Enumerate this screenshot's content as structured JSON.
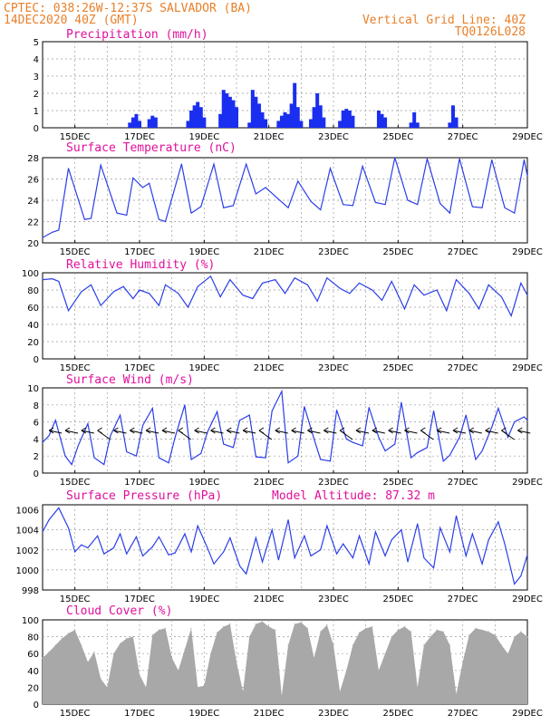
{
  "header": {
    "line1_left": "CPTEC:   038:26W-12:37S  SALVADOR (BA)",
    "line2_left": "14DEC2020 40Z (GMT)",
    "line1_right": "Vertical Grid Line: 40Z",
    "line2_right": "TQ0126L028"
  },
  "extra_text": {
    "model_altitude": "Model Altitude: 87.32 m"
  },
  "colors": {
    "header_text": "#e8802a",
    "panel_title": "#e0109a",
    "series_line": "#2a3ee8",
    "precip_bar": "#1a2ef0",
    "cloud_fill": "#a8a8a8",
    "wind_arrow": "#000000"
  },
  "chart_data": [
    {
      "type": "bar",
      "title": "Precipitation (mm/h)",
      "x_tick_labels": [
        "15DEC",
        "17DEC",
        "19DEC",
        "21DEC",
        "23DEC",
        "25DEC",
        "27DEC",
        "29DEC"
      ],
      "ylim": [
        0,
        5
      ],
      "y_ticks": [
        0,
        1,
        2,
        3,
        4,
        5
      ],
      "grid": "dashed",
      "bars": [
        [
          16.7,
          0.3
        ],
        [
          16.8,
          0.6
        ],
        [
          16.9,
          0.8
        ],
        [
          17.0,
          0.4
        ],
        [
          17.3,
          0.5
        ],
        [
          17.4,
          0.7
        ],
        [
          17.5,
          0.6
        ],
        [
          18.5,
          0.4
        ],
        [
          18.6,
          1.0
        ],
        [
          18.7,
          1.3
        ],
        [
          18.8,
          1.5
        ],
        [
          18.9,
          1.2
        ],
        [
          19.0,
          0.6
        ],
        [
          19.5,
          0.8
        ],
        [
          19.6,
          2.2
        ],
        [
          19.7,
          2.0
        ],
        [
          19.8,
          1.8
        ],
        [
          19.9,
          1.6
        ],
        [
          20.0,
          1.2
        ],
        [
          20.4,
          0.3
        ],
        [
          20.5,
          2.2
        ],
        [
          20.6,
          1.8
        ],
        [
          20.7,
          1.4
        ],
        [
          20.8,
          0.9
        ],
        [
          20.9,
          0.5
        ],
        [
          21.3,
          0.4
        ],
        [
          21.4,
          0.7
        ],
        [
          21.5,
          0.9
        ],
        [
          21.6,
          0.8
        ],
        [
          21.7,
          1.4
        ],
        [
          21.8,
          2.6
        ],
        [
          21.9,
          1.2
        ],
        [
          22.0,
          0.4
        ],
        [
          22.3,
          0.5
        ],
        [
          22.4,
          1.2
        ],
        [
          22.5,
          2.0
        ],
        [
          22.6,
          1.3
        ],
        [
          22.7,
          0.6
        ],
        [
          23.2,
          0.4
        ],
        [
          23.3,
          1.0
        ],
        [
          23.4,
          1.1
        ],
        [
          23.5,
          1.0
        ],
        [
          23.6,
          0.7
        ],
        [
          24.4,
          1.0
        ],
        [
          24.5,
          0.8
        ],
        [
          24.6,
          0.6
        ],
        [
          25.4,
          0.3
        ],
        [
          25.5,
          0.9
        ],
        [
          25.6,
          0.3
        ],
        [
          26.6,
          0.3
        ],
        [
          26.7,
          1.3
        ],
        [
          26.8,
          0.6
        ]
      ]
    },
    {
      "type": "line",
      "title": "Surface Temperature (nC)",
      "x_tick_labels": [
        "15DEC",
        "17DEC",
        "19DEC",
        "21DEC",
        "23DEC",
        "25DEC",
        "27DEC",
        "29DEC"
      ],
      "ylim": [
        20,
        28
      ],
      "y_ticks": [
        20,
        22,
        24,
        26,
        28
      ],
      "grid": "dashed",
      "x": [
        14.0,
        14.3,
        14.5,
        14.8,
        15.3,
        15.5,
        15.8,
        16.3,
        16.6,
        16.8,
        17.1,
        17.3,
        17.6,
        17.8,
        18.3,
        18.6,
        18.9,
        19.3,
        19.6,
        19.9,
        20.3,
        20.6,
        20.9,
        21.3,
        21.6,
        21.9,
        22.3,
        22.6,
        22.9,
        23.3,
        23.6,
        23.9,
        24.3,
        24.6,
        24.9,
        25.3,
        25.6,
        25.9,
        26.3,
        26.6,
        26.9,
        27.3,
        27.6,
        27.9,
        28.3,
        28.6,
        28.9,
        29.0
      ],
      "y": [
        20.5,
        21.0,
        21.2,
        27.0,
        22.2,
        22.3,
        27.3,
        22.8,
        22.6,
        26.1,
        25.2,
        25.6,
        22.2,
        22.0,
        27.4,
        22.8,
        23.4,
        27.4,
        23.3,
        23.5,
        27.4,
        24.6,
        25.2,
        24.1,
        23.3,
        25.8,
        23.9,
        23.1,
        27.0,
        23.6,
        23.5,
        27.2,
        23.8,
        23.6,
        28.0,
        24.0,
        23.6,
        27.9,
        23.7,
        22.8,
        27.9,
        23.4,
        23.3,
        27.8,
        23.3,
        22.8,
        27.8,
        26.3
      ]
    },
    {
      "type": "line",
      "title": "Relative Humidity (%)",
      "x_tick_labels": [
        "15DEC",
        "17DEC",
        "19DEC",
        "21DEC",
        "23DEC",
        "25DEC",
        "27DEC",
        "29DEC"
      ],
      "ylim": [
        0,
        100
      ],
      "y_ticks": [
        0,
        20,
        40,
        60,
        80,
        100
      ],
      "grid": "dashed",
      "x": [
        14.0,
        14.3,
        14.5,
        14.8,
        15.2,
        15.5,
        15.8,
        16.2,
        16.5,
        16.8,
        17.0,
        17.3,
        17.6,
        17.8,
        18.2,
        18.5,
        18.8,
        19.2,
        19.5,
        19.8,
        20.2,
        20.5,
        20.8,
        21.2,
        21.5,
        21.8,
        22.2,
        22.5,
        22.8,
        23.2,
        23.5,
        23.8,
        24.2,
        24.5,
        24.8,
        25.2,
        25.5,
        25.8,
        26.2,
        26.5,
        26.8,
        27.2,
        27.5,
        27.8,
        28.2,
        28.5,
        28.8,
        29.0
      ],
      "y": [
        92,
        93,
        90,
        56,
        78,
        86,
        62,
        78,
        84,
        70,
        80,
        76,
        62,
        86,
        76,
        60,
        84,
        96,
        72,
        92,
        74,
        70,
        88,
        92,
        76,
        94,
        86,
        67,
        94,
        82,
        76,
        88,
        80,
        68,
        90,
        58,
        86,
        74,
        80,
        56,
        92,
        76,
        58,
        86,
        72,
        50,
        88,
        74
      ]
    },
    {
      "type": "line",
      "title": "Surface Wind (m/s)",
      "x_tick_labels": [
        "15DEC",
        "17DEC",
        "19DEC",
        "21DEC",
        "23DEC",
        "25DEC",
        "27DEC",
        "29DEC"
      ],
      "ylim": [
        0,
        10
      ],
      "y_ticks": [
        0,
        2,
        4,
        6,
        8,
        10
      ],
      "grid": "dashed",
      "x": [
        14.0,
        14.2,
        14.4,
        14.7,
        14.9,
        15.1,
        15.4,
        15.6,
        15.9,
        16.1,
        16.4,
        16.6,
        16.9,
        17.1,
        17.4,
        17.6,
        17.9,
        18.1,
        18.4,
        18.6,
        18.9,
        19.1,
        19.4,
        19.6,
        19.9,
        20.1,
        20.4,
        20.6,
        20.9,
        21.1,
        21.4,
        21.6,
        21.9,
        22.1,
        22.4,
        22.6,
        22.9,
        23.1,
        23.4,
        23.6,
        23.9,
        24.1,
        24.4,
        24.6,
        24.9,
        25.1,
        25.4,
        25.6,
        25.9,
        26.1,
        26.4,
        26.6,
        26.9,
        27.1,
        27.4,
        27.6,
        27.9,
        28.1,
        28.4,
        28.6,
        28.9,
        29.0
      ],
      "y": [
        3.6,
        4.4,
        6.2,
        2.0,
        1.0,
        3.2,
        5.8,
        1.8,
        1.0,
        4.4,
        6.8,
        2.5,
        2.0,
        5.6,
        7.6,
        1.8,
        1.2,
        4.2,
        8.0,
        1.6,
        2.3,
        4.8,
        7.2,
        3.4,
        3.0,
        6.2,
        6.8,
        1.9,
        1.8,
        7.3,
        9.6,
        1.2,
        2.0,
        7.8,
        4.0,
        1.6,
        1.4,
        7.4,
        4.0,
        3.6,
        3.2,
        7.7,
        4.2,
        2.6,
        3.4,
        8.3,
        1.8,
        2.4,
        3.0,
        7.3,
        1.4,
        2.1,
        4.2,
        6.8,
        1.6,
        2.6,
        5.4,
        7.6,
        4.2,
        6.0,
        6.6,
        6.2
      ],
      "wind_arrows_note": "wind direction vectors drawn along the series"
    },
    {
      "type": "line",
      "title": "Surface Pressure (hPa)",
      "x_tick_labels": [
        "15DEC",
        "17DEC",
        "19DEC",
        "21DEC",
        "23DEC",
        "25DEC",
        "27DEC",
        "29DEC"
      ],
      "ylim": [
        998,
        1006.5
      ],
      "y_ticks": [
        998,
        1000,
        1002,
        1004,
        1006
      ],
      "grid": "dashed",
      "x": [
        14.0,
        14.2,
        14.5,
        14.8,
        15.0,
        15.2,
        15.4,
        15.7,
        15.9,
        16.2,
        16.4,
        16.6,
        16.9,
        17.1,
        17.4,
        17.6,
        17.9,
        18.1,
        18.4,
        18.6,
        18.8,
        19.1,
        19.3,
        19.6,
        19.8,
        20.1,
        20.3,
        20.6,
        20.8,
        21.1,
        21.3,
        21.6,
        21.8,
        22.1,
        22.3,
        22.6,
        22.8,
        23.1,
        23.3,
        23.6,
        23.8,
        24.1,
        24.3,
        24.6,
        24.8,
        25.1,
        25.3,
        25.6,
        25.8,
        26.1,
        26.3,
        26.6,
        26.8,
        27.1,
        27.3,
        27.6,
        27.8,
        28.1,
        28.3,
        28.6,
        28.8,
        29.0
      ],
      "y": [
        1003.8,
        1005.0,
        1006.2,
        1004.2,
        1001.8,
        1002.5,
        1002.2,
        1003.4,
        1001.6,
        1002.2,
        1003.6,
        1001.6,
        1003.3,
        1001.4,
        1002.3,
        1003.3,
        1001.5,
        1001.7,
        1003.6,
        1001.8,
        1004.4,
        1002.2,
        1000.6,
        1001.8,
        1003.2,
        1000.4,
        999.6,
        1003.2,
        1000.8,
        1004.0,
        1001.0,
        1005.0,
        1001.2,
        1003.4,
        1001.4,
        1002.0,
        1004.4,
        1001.6,
        1002.6,
        1001.2,
        1003.4,
        1000.6,
        1003.8,
        1001.4,
        1003.0,
        1004.0,
        1000.8,
        1004.6,
        1001.2,
        1000.2,
        1004.2,
        1001.8,
        1005.4,
        1001.4,
        1003.6,
        1000.6,
        1003.0,
        1004.8,
        1002.6,
        998.6,
        999.4,
        1001.5
      ]
    },
    {
      "type": "area",
      "title": "Cloud Cover (%)",
      "x_tick_labels": [
        "15DEC",
        "17DEC",
        "19DEC",
        "21DEC",
        "23DEC",
        "25DEC",
        "27DEC",
        "29DEC"
      ],
      "ylim": [
        0,
        100
      ],
      "y_ticks": [
        0,
        20,
        40,
        60,
        80,
        100
      ],
      "grid": "dashed",
      "x": [
        14.0,
        14.2,
        14.4,
        14.6,
        14.8,
        15.0,
        15.2,
        15.4,
        15.6,
        15.8,
        16.0,
        16.2,
        16.4,
        16.6,
        16.8,
        17.0,
        17.2,
        17.4,
        17.6,
        17.8,
        18.0,
        18.2,
        18.4,
        18.6,
        18.8,
        19.0,
        19.2,
        19.4,
        19.6,
        19.8,
        20.0,
        20.2,
        20.4,
        20.6,
        20.8,
        21.0,
        21.2,
        21.4,
        21.6,
        21.8,
        22.0,
        22.2,
        22.4,
        22.6,
        22.8,
        23.0,
        23.2,
        23.4,
        23.6,
        23.8,
        24.0,
        24.2,
        24.4,
        24.6,
        24.8,
        25.0,
        25.2,
        25.4,
        25.6,
        25.8,
        26.0,
        26.2,
        26.4,
        26.6,
        26.8,
        27.0,
        27.2,
        27.4,
        27.6,
        27.8,
        28.0,
        28.2,
        28.4,
        28.6,
        28.8,
        29.0
      ],
      "y": [
        55,
        62,
        70,
        78,
        84,
        88,
        70,
        50,
        62,
        30,
        20,
        60,
        72,
        78,
        80,
        35,
        20,
        82,
        88,
        90,
        55,
        40,
        65,
        90,
        20,
        22,
        60,
        85,
        92,
        95,
        50,
        15,
        80,
        95,
        98,
        92,
        88,
        10,
        70,
        95,
        97,
        90,
        55,
        86,
        94,
        70,
        15,
        40,
        70,
        85,
        90,
        92,
        40,
        60,
        80,
        88,
        92,
        86,
        20,
        70,
        80,
        88,
        86,
        70,
        12,
        50,
        82,
        90,
        88,
        86,
        82,
        70,
        60,
        80,
        86,
        80
      ]
    }
  ]
}
